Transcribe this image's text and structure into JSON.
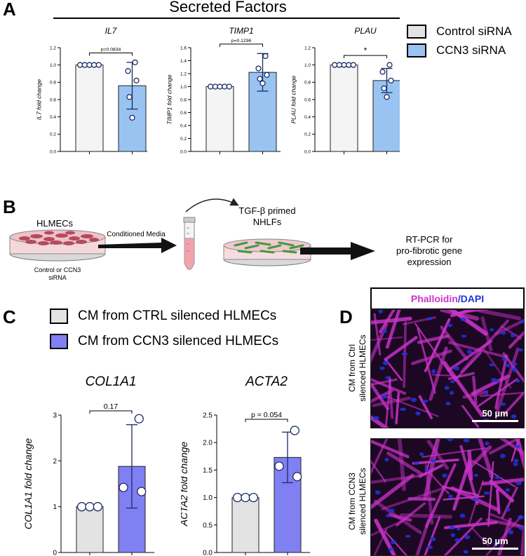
{
  "panels": {
    "a_letter": "A",
    "b_letter": "B",
    "c_letter": "C",
    "d_letter": "D"
  },
  "panel_a": {
    "header": "Secreted Factors",
    "legend": [
      {
        "label": "Control siRNA",
        "color": "#e3e3e3"
      },
      {
        "label": "CCN3 siRNA",
        "color": "#99c4f2"
      }
    ]
  },
  "panel_b": {
    "hlmecs": "HLMECs",
    "control_line1": "Control or CCN3",
    "control_line2": "siRNA",
    "conditioned_media": "Conditioned Media",
    "tgf_line1": "TGF-β primed",
    "tgf_line2": "NHLFs",
    "rtpcr_line1": "RT-PCR for",
    "rtpcr_line2": "pro-fibrotic gene",
    "rtpcr_line3": "expression"
  },
  "panel_c": {
    "legend": [
      {
        "label": "CM from CTRL silenced HLMECs",
        "color": "#e3e3e3"
      },
      {
        "label": "CM from CCN3 silenced HLMECs",
        "color": "#8080f2"
      }
    ]
  },
  "panel_d": {
    "header_a": "Phalloidin",
    "header_sep": "/",
    "header_b": "DAPI",
    "top_label_1": "CM from Ctrl",
    "top_label_2": "silenced HLMECs",
    "bottom_label_1": "CM from CCN3",
    "bottom_label_2": "silenced HLMECs",
    "scalebar": "50 µm",
    "colors": {
      "phalloidin": "#cc33cc",
      "dapi": "#2233dd"
    }
  },
  "chart_data": [
    {
      "type": "bar",
      "id": "il7",
      "title": "IL7",
      "ylabel": "IL7 fold change",
      "categories": [
        "Control siRNA",
        "CCN3 siRNA"
      ],
      "values": [
        1.0,
        0.76
      ],
      "sd": [
        0,
        0.27
      ],
      "points": [
        [
          1.0,
          1.0,
          1.0,
          1.0,
          1.0
        ],
        [
          1.03,
          0.93,
          0.82,
          0.63,
          0.39
        ]
      ],
      "ylim": [
        0,
        1.2
      ],
      "yticks": [
        "0.0",
        "0.2",
        "0.4",
        "0.6",
        "0.8",
        "1.0",
        "1.2"
      ],
      "annotation": "p=0.0834",
      "colors": [
        "#f4f4f4",
        "#99c4f2"
      ]
    },
    {
      "type": "bar",
      "id": "timp1",
      "title": "TIMP1",
      "ylabel": "TIMP1 fold change",
      "categories": [
        "Control siRNA",
        "CCN3 siRNA"
      ],
      "values": [
        1.0,
        1.22
      ],
      "sd": [
        0,
        0.29
      ],
      "points": [
        [
          1.0,
          1.0,
          1.0,
          1.0,
          1.0
        ],
        [
          1.47,
          1.28,
          1.18,
          1.12,
          1.05
        ]
      ],
      "ylim": [
        0,
        1.6
      ],
      "yticks": [
        "0.0",
        "0.2",
        "0.4",
        "0.6",
        "0.8",
        "1.0",
        "1.2",
        "1.4",
        "1.6"
      ],
      "annotation": "p=0.1296",
      "colors": [
        "#f4f4f4",
        "#99c4f2"
      ]
    },
    {
      "type": "bar",
      "id": "plau",
      "title": "PLAU",
      "ylabel": "PLAU fold change",
      "categories": [
        "Control siRNA",
        "CCN3 siRNA"
      ],
      "values": [
        1.0,
        0.82
      ],
      "sd": [
        0,
        0.14
      ],
      "points": [
        [
          1.0,
          1.0,
          1.0,
          1.0,
          1.0
        ],
        [
          1.0,
          0.92,
          0.82,
          0.73,
          0.63
        ]
      ],
      "ylim": [
        0,
        1.2
      ],
      "yticks": [
        "0.0",
        "0.2",
        "0.4",
        "0.6",
        "0.8",
        "1.0",
        "1.2"
      ],
      "annotation": "*",
      "colors": [
        "#f4f4f4",
        "#99c4f2"
      ]
    },
    {
      "type": "bar",
      "id": "col1a1",
      "title": "COL1A1",
      "ylabel": "COL1A1 fold change",
      "categories": [
        "CM from CTRL silenced HLMECs",
        "CM from CCN3 silenced HLMECs"
      ],
      "values": [
        1.0,
        1.88
      ],
      "sd": [
        0,
        0.91
      ],
      "points": [
        [
          1.0,
          1.0,
          1.0
        ],
        [
          2.92,
          1.42,
          1.33
        ]
      ],
      "ylim": [
        0,
        3
      ],
      "yticks": [
        "0",
        "1",
        "2",
        "3"
      ],
      "annotation": "0.17",
      "colors": [
        "#e3e3e3",
        "#8080f2"
      ]
    },
    {
      "type": "bar",
      "id": "acta2",
      "title": "ACTA2",
      "ylabel": "ACTA2 fold change",
      "categories": [
        "CM from CTRL silenced HLMECs",
        "CM from CCN3 silenced HLMECs"
      ],
      "values": [
        1.0,
        1.73
      ],
      "sd": [
        0,
        0.46
      ],
      "points": [
        [
          1.0,
          1.0,
          1.0
        ],
        [
          2.22,
          1.57,
          1.38
        ]
      ],
      "ylim": [
        0,
        2.5
      ],
      "yticks": [
        "0.0",
        "0.5",
        "1.0",
        "1.5",
        "2.0",
        "2.5"
      ],
      "annotation": "p = 0.054",
      "colors": [
        "#e3e3e3",
        "#8080f2"
      ]
    }
  ]
}
